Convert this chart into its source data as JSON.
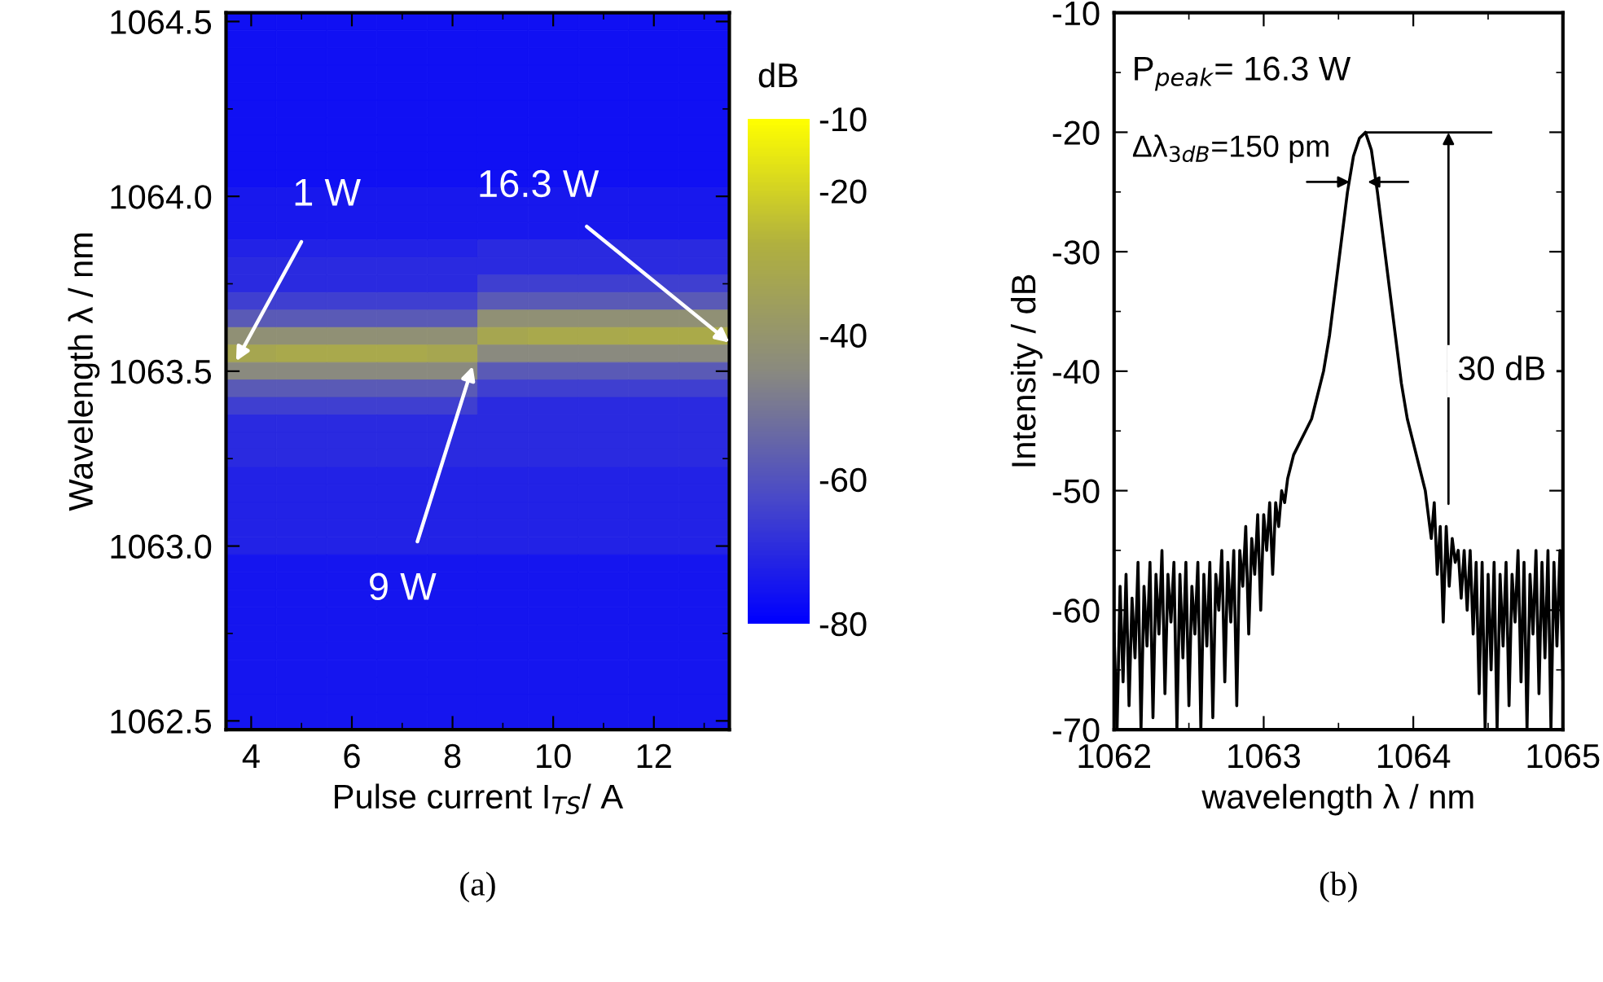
{
  "chart_data": [
    {
      "type": "heatmap",
      "title": "(a)",
      "xlabel": "Pulse current I$_{TS}$/ A",
      "ylabel": "Wavelength λ / nm",
      "clabel": "dB",
      "clim": [
        -80,
        -10
      ],
      "cticks": [
        -80,
        -60,
        -40,
        -20,
        -10
      ],
      "categories": [
        "4",
        null,
        "6",
        null,
        "8",
        null,
        "10",
        null,
        "12",
        null
      ],
      "y_categories": [
        "1064.5",
        null,
        null,
        null,
        null,
        null,
        null,
        null,
        null,
        null,
        "1064.0",
        null,
        null,
        null,
        null,
        null,
        null,
        null,
        null,
        null,
        "1063.5",
        null,
        null,
        null,
        null,
        null,
        null,
        null,
        null,
        null,
        "1063.0",
        null,
        null,
        null,
        null,
        null,
        null,
        null,
        null,
        null,
        "1062.5"
      ],
      "cells": [
        [
          -76,
          -76,
          -76,
          -76,
          -76,
          -76,
          -76,
          -76,
          -76,
          -76
        ],
        [
          -76,
          -76,
          -76,
          -76,
          -76,
          -76,
          -76,
          -76,
          -76,
          -76
        ],
        [
          -76,
          -76,
          -76,
          -76,
          -76,
          -76,
          -76,
          -76,
          -76,
          -76
        ],
        [
          -76,
          -76,
          -76,
          -76,
          -76,
          -76,
          -76,
          -76,
          -76,
          -76
        ],
        [
          -76,
          -76,
          -76,
          -76,
          -76,
          -76,
          -76,
          -76,
          -76,
          -76
        ],
        [
          -76,
          -76,
          -76,
          -76,
          -76,
          -76,
          -76,
          -76,
          -76,
          -76
        ],
        [
          -76,
          -76,
          -76,
          -76,
          -76,
          -76,
          -76,
          -76,
          -76,
          -76
        ],
        [
          -76,
          -76,
          -76,
          -76,
          -76,
          -76,
          -76,
          -76,
          -76,
          -76
        ],
        [
          -76,
          -76,
          -76,
          -76,
          -76,
          -76,
          -76,
          -76,
          -76,
          -76
        ],
        [
          -76,
          -76,
          -76,
          -76,
          -76,
          -76,
          -76,
          -76,
          -76,
          -76
        ],
        [
          -74,
          -74,
          -74,
          -74,
          -74,
          -74,
          -74,
          -74,
          -74,
          -74
        ],
        [
          -74,
          -74,
          -74,
          -74,
          -74,
          -74,
          -74,
          -74,
          -74,
          -74
        ],
        [
          -74,
          -74,
          -74,
          -74,
          -74,
          -74,
          -74,
          -74,
          -74,
          -74
        ],
        [
          -72,
          -72,
          -72,
          -72,
          -72,
          -70,
          -70,
          -70,
          -70,
          -70
        ],
        [
          -70,
          -70,
          -70,
          -70,
          -70,
          -70,
          -70,
          -70,
          -70,
          -70
        ],
        [
          -70,
          -70,
          -70,
          -70,
          -70,
          -65,
          -65,
          -65,
          -65,
          -65
        ],
        [
          -65,
          -65,
          -65,
          -65,
          -65,
          -58,
          -58,
          -58,
          -58,
          -58
        ],
        [
          -58,
          -58,
          -58,
          -58,
          -58,
          -42,
          -42,
          -42,
          -42,
          -42
        ],
        [
          -42,
          -42,
          -42,
          -42,
          -42,
          -32,
          -31,
          -31,
          -30,
          -30
        ],
        [
          -32,
          -31,
          -31,
          -31,
          -32,
          -45,
          -45,
          -45,
          -45,
          -45
        ],
        [
          -45,
          -45,
          -45,
          -45,
          -45,
          -58,
          -58,
          -58,
          -58,
          -58
        ],
        [
          -58,
          -58,
          -58,
          -58,
          -58,
          -65,
          -65,
          -65,
          -65,
          -65
        ],
        [
          -65,
          -65,
          -65,
          -65,
          -65,
          -70,
          -70,
          -70,
          -70,
          -70
        ],
        [
          -70,
          -70,
          -70,
          -70,
          -70,
          -70,
          -70,
          -70,
          -70,
          -70
        ],
        [
          -70,
          -70,
          -70,
          -70,
          -70,
          -70,
          -70,
          -70,
          -70,
          -70
        ],
        [
          -70,
          -70,
          -70,
          -70,
          -70,
          -70,
          -70,
          -70,
          -70,
          -70
        ],
        [
          -72,
          -72,
          -72,
          -72,
          -72,
          -72,
          -72,
          -72,
          -72,
          -72
        ],
        [
          -72,
          -72,
          -72,
          -72,
          -72,
          -72,
          -72,
          -72,
          -72,
          -72
        ],
        [
          -72,
          -72,
          -72,
          -72,
          -72,
          -72,
          -72,
          -72,
          -72,
          -72
        ],
        [
          -72,
          -72,
          -72,
          -72,
          -72,
          -72,
          -72,
          -72,
          -72,
          -72
        ],
        [
          -72,
          -72,
          -72,
          -72,
          -72,
          -72,
          -72,
          -72,
          -72,
          -72
        ],
        [
          -75,
          -75,
          -75,
          -75,
          -75,
          -75,
          -75,
          -75,
          -75,
          -75
        ],
        [
          -75,
          -75,
          -75,
          -75,
          -75,
          -75,
          -75,
          -75,
          -75,
          -75
        ],
        [
          -75,
          -75,
          -75,
          -75,
          -75,
          -75,
          -75,
          -75,
          -75,
          -75
        ],
        [
          -75,
          -75,
          -75,
          -75,
          -75,
          -75,
          -75,
          -75,
          -75,
          -75
        ],
        [
          -75,
          -75,
          -75,
          -75,
          -75,
          -75,
          -75,
          -75,
          -75,
          -75
        ],
        [
          -75,
          -75,
          -75,
          -75,
          -75,
          -75,
          -75,
          -75,
          -75,
          -75
        ],
        [
          -75,
          -75,
          -75,
          -75,
          -75,
          -75,
          -75,
          -75,
          -75,
          -75
        ],
        [
          -75,
          -75,
          -75,
          -75,
          -75,
          -75,
          -75,
          -75,
          -75,
          -75
        ],
        [
          -75,
          -75,
          -75,
          -75,
          -75,
          -75,
          -75,
          -75,
          -75,
          -75
        ],
        [
          -75,
          -75,
          -75,
          -75,
          -75,
          -75,
          -75,
          -75,
          -75,
          -75
        ]
      ],
      "annotations": [
        "1 W",
        "16.3 W",
        "9 W"
      ]
    },
    {
      "type": "line",
      "title": "(b)",
      "xlabel": "wavelength λ / nm",
      "ylabel": "Intensity / dB",
      "xlim": [
        1062,
        1065
      ],
      "xticks": [
        1062,
        1063,
        1064,
        1065
      ],
      "ylim": [
        -70,
        -10
      ],
      "yticks": [
        -70,
        -60,
        -50,
        -40,
        -30,
        -20,
        -10
      ],
      "grid": false,
      "legend": false,
      "marker": "none",
      "line_style": "solid",
      "series": [
        {
          "color": "#000000",
          "x": [
            1062.0,
            1062.02,
            1062.04,
            1062.06,
            1062.08,
            1062.1,
            1062.12,
            1062.14,
            1062.16,
            1062.18,
            1062.2,
            1062.22,
            1062.24,
            1062.26,
            1062.28,
            1062.3,
            1062.32,
            1062.34,
            1062.36,
            1062.38,
            1062.4,
            1062.42,
            1062.44,
            1062.46,
            1062.48,
            1062.5,
            1062.52,
            1062.54,
            1062.56,
            1062.58,
            1062.6,
            1062.62,
            1062.64,
            1062.66,
            1062.68,
            1062.7,
            1062.72,
            1062.74,
            1062.76,
            1062.78,
            1062.8,
            1062.82,
            1062.84,
            1062.86,
            1062.88,
            1062.9,
            1062.92,
            1062.94,
            1062.96,
            1062.98,
            1063.0,
            1063.02,
            1063.04,
            1063.06,
            1063.08,
            1063.1,
            1063.12,
            1063.14,
            1063.16,
            1063.18,
            1063.2,
            1063.24,
            1063.28,
            1063.32,
            1063.36,
            1063.4,
            1063.44,
            1063.48,
            1063.52,
            1063.56,
            1063.6,
            1063.64,
            1063.68,
            1063.72,
            1063.76,
            1063.8,
            1063.84,
            1063.88,
            1063.92,
            1063.96,
            1064.0,
            1064.04,
            1064.08,
            1064.1,
            1064.12,
            1064.14,
            1064.16,
            1064.18,
            1064.2,
            1064.22,
            1064.24,
            1064.26,
            1064.28,
            1064.3,
            1064.32,
            1064.34,
            1064.36,
            1064.38,
            1064.4,
            1064.42,
            1064.44,
            1064.46,
            1064.48,
            1064.5,
            1064.52,
            1064.54,
            1064.56,
            1064.58,
            1064.6,
            1064.62,
            1064.64,
            1064.66,
            1064.68,
            1064.7,
            1064.72,
            1064.74,
            1064.76,
            1064.78,
            1064.8,
            1064.82,
            1064.84,
            1064.86,
            1064.88,
            1064.9,
            1064.92,
            1064.94,
            1064.96,
            1064.98,
            1065.0
          ],
          "values": [
            -62,
            -70,
            -58,
            -66,
            -57,
            -68,
            -59,
            -64,
            -56,
            -70,
            -58,
            -63,
            -56,
            -69,
            -57,
            -62,
            -55,
            -67,
            -57,
            -61,
            -56,
            -70,
            -57,
            -64,
            -56,
            -68,
            -58,
            -62,
            -56,
            -70,
            -57,
            -63,
            -56,
            -69,
            -57,
            -60,
            -55,
            -66,
            -56,
            -61,
            -55,
            -68,
            -55,
            -58,
            -53,
            -62,
            -54,
            -57,
            -52,
            -60,
            -52,
            -55,
            -51,
            -57,
            -51,
            -53,
            -50,
            -51,
            -49,
            -48,
            -47,
            -46,
            -45,
            -44,
            -42,
            -40,
            -37,
            -33,
            -29,
            -25,
            -22,
            -20.5,
            -20,
            -21.5,
            -25,
            -29,
            -33,
            -37,
            -41,
            -44,
            -46,
            -48,
            -50,
            -52,
            -54,
            -51,
            -57,
            -53,
            -61,
            -53,
            -58,
            -54,
            -56,
            -55,
            -59,
            -55,
            -60,
            -55,
            -62,
            -56,
            -67,
            -56,
            -70,
            -57,
            -65,
            -56,
            -70,
            -57,
            -63,
            -56,
            -68,
            -57,
            -61,
            -55,
            -66,
            -56,
            -70,
            -57,
            -62,
            -55,
            -67,
            -56,
            -64,
            -55,
            -70,
            -56,
            -63,
            -55,
            -66
          ]
        }
      ],
      "annotations": [
        "P$_{peak}$= 16.3 W",
        "Δλ$_{3dB}$=150 pm",
        "30 dB"
      ]
    }
  ]
}
